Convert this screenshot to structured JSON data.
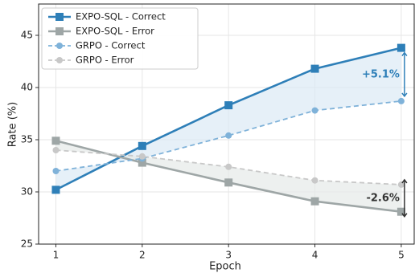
{
  "chart_data": {
    "type": "line",
    "xlabel": "Epoch",
    "ylabel": "Rate (%)",
    "x": [
      1,
      2,
      3,
      4,
      5
    ],
    "xlim": [
      0.8,
      5.15
    ],
    "xticks": [
      1,
      2,
      3,
      4,
      5
    ],
    "ylim": [
      25,
      48
    ],
    "yticks": [
      25,
      30,
      35,
      40,
      45
    ],
    "grid": true,
    "legend": "upper left",
    "series": [
      {
        "name": "EXPO-SQL - Correct",
        "color": "#2e7fb8",
        "marker": "square",
        "dashed": false,
        "values": [
          30.2,
          34.4,
          38.3,
          41.8,
          43.8
        ]
      },
      {
        "name": "EXPO-SQL - Error",
        "color": "#9ea6a6",
        "marker": "square",
        "dashed": false,
        "values": [
          34.9,
          32.8,
          30.9,
          29.1,
          28.1
        ]
      },
      {
        "name": "GRPO - Correct",
        "color": "#7fb2d9",
        "marker": "circle",
        "dashed": true,
        "values": [
          32.0,
          33.2,
          35.4,
          37.8,
          38.7
        ]
      },
      {
        "name": "GRPO - Error",
        "color": "#c8c8c8",
        "marker": "circle",
        "dashed": true,
        "values": [
          34.0,
          33.4,
          32.4,
          31.1,
          30.7
        ]
      }
    ],
    "fill_between": [
      {
        "series": [
          0,
          2
        ],
        "color": "#dce9f5"
      },
      {
        "series": [
          1,
          3
        ],
        "color": "#e6eae8"
      }
    ],
    "annotations": [
      {
        "text": "+5.1%",
        "between": [
          0,
          2
        ],
        "color": "#2e7fb8"
      },
      {
        "text": "-2.6%",
        "between": [
          1,
          3
        ],
        "color": "#333333"
      }
    ]
  }
}
